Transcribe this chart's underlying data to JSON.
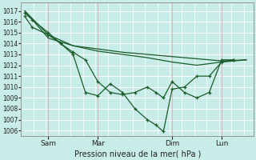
{
  "background_color": "#c8ece8",
  "grid_color": "#ffffff",
  "vgrid_color": "#d8b8b8",
  "line_color": "#1a5c2a",
  "xlabel_text": "Pression niveau de la mer( hPa )",
  "xtick_labels": [
    "Sam",
    "Mar",
    "Dim",
    "Lun"
  ],
  "xtick_positions": [
    1,
    3,
    6,
    8
  ],
  "ylim": [
    1005.5,
    1017.8
  ],
  "xlim": [
    -0.1,
    9.3
  ],
  "yticks": [
    1006,
    1007,
    1008,
    1009,
    1010,
    1011,
    1012,
    1013,
    1014,
    1015,
    1016,
    1017
  ],
  "line1_marked": {
    "x": [
      0.05,
      0.35,
      1.0,
      1.5,
      2.0,
      2.5,
      3.0,
      3.5,
      4.0,
      4.5,
      5.0,
      5.35,
      5.65,
      6.0,
      6.5,
      7.0,
      7.5,
      8.0,
      8.5
    ],
    "y": [
      1016.8,
      1016.2,
      1015.0,
      1014.0,
      1013.0,
      1009.5,
      1009.2,
      1010.3,
      1009.5,
      1008.0,
      1007.0,
      1006.5,
      1005.9,
      1009.8,
      1010.0,
      1011.0,
      1011.0,
      1012.3,
      1012.5
    ]
  },
  "line2_plain": {
    "x": [
      0.05,
      1.0,
      2.0,
      3.0,
      4.0,
      5.0,
      6.0,
      7.0,
      8.0,
      9.0
    ],
    "y": [
      1017.0,
      1014.8,
      1013.8,
      1013.5,
      1013.2,
      1013.0,
      1012.8,
      1012.6,
      1012.4,
      1012.5
    ]
  },
  "line3_plain": {
    "x": [
      0.05,
      1.0,
      2.0,
      3.0,
      4.0,
      5.0,
      6.0,
      7.0,
      8.0,
      9.0
    ],
    "y": [
      1017.0,
      1014.5,
      1013.8,
      1013.3,
      1013.0,
      1012.7,
      1012.3,
      1012.0,
      1012.3,
      1012.5
    ]
  },
  "line4_marked": {
    "x": [
      0.05,
      0.35,
      1.0,
      1.5,
      2.0,
      2.5,
      3.0,
      3.5,
      4.0,
      4.5,
      5.0,
      5.35,
      5.65,
      6.0,
      6.5,
      7.0,
      7.5,
      8.0,
      8.5
    ],
    "y": [
      1016.5,
      1015.5,
      1014.8,
      1014.0,
      1013.2,
      1012.5,
      1010.5,
      1009.5,
      1009.3,
      1009.5,
      1010.0,
      1009.5,
      1009.0,
      1010.5,
      1009.5,
      1009.0,
      1009.5,
      1012.5,
      1012.5
    ]
  }
}
